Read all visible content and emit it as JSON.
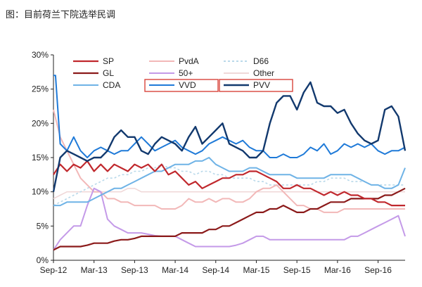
{
  "caption": "图：目前荷兰下院选举民调",
  "chart_data": {
    "type": "line",
    "title": "",
    "xlabel": "",
    "ylabel": "",
    "x_ticks": [
      "Sep-12",
      "Mar-13",
      "Sep-13",
      "Mar-14",
      "Sep-14",
      "Mar-15",
      "Sep-15",
      "Mar-16",
      "Sep-16"
    ],
    "y_ticks": [
      "0%",
      "5%",
      "10%",
      "15%",
      "20%",
      "25%",
      "30%"
    ],
    "x_range_months": [
      0,
      52
    ],
    "ylim": [
      0,
      30
    ],
    "grid": false,
    "legend_placement": "top-left",
    "highlighted_series": [
      "VVD",
      "PVV"
    ],
    "series": [
      {
        "name": "SP",
        "color": "#c0282d",
        "width": 2.2,
        "dash": "",
        "x": [
          0,
          1,
          2,
          3,
          4,
          5,
          6,
          7,
          8,
          9,
          10,
          11,
          12,
          13,
          14,
          15,
          16,
          17,
          18,
          19,
          20,
          21,
          22,
          23,
          24,
          25,
          26,
          27,
          28,
          29,
          30,
          31,
          32,
          33,
          34,
          35,
          36,
          37,
          38,
          39,
          40,
          41,
          42,
          43,
          44,
          45,
          46,
          47,
          48,
          49,
          50,
          51,
          52
        ],
        "y": [
          12.5,
          14,
          13,
          14,
          13.5,
          14.5,
          13,
          14,
          13,
          14,
          13.5,
          13,
          14,
          13.5,
          14,
          13,
          14,
          12.5,
          13,
          12,
          11,
          11.5,
          10.5,
          11,
          11.5,
          12,
          12,
          12.5,
          12.5,
          13,
          13,
          12.5,
          12,
          11.5,
          10.5,
          10.5,
          11,
          10.5,
          10.5,
          10,
          9.5,
          10,
          9.5,
          10,
          9.5,
          9.5,
          9,
          9,
          8.5,
          8.5,
          8,
          8,
          8
        ]
      },
      {
        "name": "PvdA",
        "color": "#f2b8b8",
        "width": 2,
        "dash": "",
        "x": [
          0,
          1,
          2,
          3,
          4,
          5,
          6,
          7,
          8,
          9,
          10,
          11,
          12,
          13,
          14,
          15,
          16,
          17,
          18,
          19,
          20,
          21,
          22,
          23,
          24,
          25,
          26,
          27,
          28,
          29,
          30,
          31,
          32,
          33,
          34,
          35,
          36,
          37,
          38,
          39,
          40,
          41,
          42,
          43,
          44,
          45,
          46,
          47,
          48,
          49,
          50,
          51,
          52
        ],
        "y": [
          22,
          18,
          16,
          14,
          12,
          11,
          10,
          10,
          9,
          9,
          8.5,
          8.5,
          8,
          8,
          8,
          8,
          7.5,
          7.5,
          7.5,
          8,
          9,
          8.5,
          8.5,
          9,
          8.5,
          9,
          9,
          8.5,
          8.5,
          9,
          10,
          10.5,
          10.5,
          11,
          10,
          9,
          8,
          8,
          7.5,
          7.5,
          7,
          7,
          7,
          7.5,
          7.5,
          7.5,
          7.5,
          7.5,
          7.5,
          7.5,
          7.5,
          7.5,
          7.5
        ]
      },
      {
        "name": "D66",
        "color": "#b9d9ea",
        "width": 1.6,
        "dash": "3,3",
        "x": [
          0,
          1,
          2,
          3,
          4,
          5,
          6,
          7,
          8,
          9,
          10,
          11,
          12,
          13,
          14,
          15,
          16,
          17,
          18,
          19,
          20,
          21,
          22,
          23,
          24,
          25,
          26,
          27,
          28,
          29,
          30,
          31,
          32,
          33,
          34,
          35,
          36,
          37,
          38,
          39,
          40,
          41,
          42,
          43,
          44,
          45,
          46,
          47,
          48,
          49,
          50,
          51,
          52
        ],
        "y": [
          8,
          8.5,
          9,
          9.5,
          10,
          10.5,
          11,
          11.5,
          12,
          12,
          12.5,
          12.5,
          13,
          13,
          13.5,
          13.5,
          14,
          13.5,
          13.5,
          13,
          13,
          12.5,
          13,
          13,
          12.5,
          12.5,
          12,
          12,
          12,
          12,
          11.5,
          11.5,
          11,
          11,
          11,
          11,
          11,
          11,
          11,
          11.5,
          11.5,
          12,
          12,
          12,
          11.5,
          11.5,
          11.5,
          11,
          11,
          11,
          11,
          11,
          11
        ]
      },
      {
        "name": "GL",
        "color": "#8b1a1a",
        "width": 2.2,
        "dash": "",
        "x": [
          0,
          1,
          2,
          3,
          4,
          5,
          6,
          7,
          8,
          9,
          10,
          11,
          12,
          13,
          14,
          15,
          16,
          17,
          18,
          19,
          20,
          21,
          22,
          23,
          24,
          25,
          26,
          27,
          28,
          29,
          30,
          31,
          32,
          33,
          34,
          35,
          36,
          37,
          38,
          39,
          40,
          41,
          42,
          43,
          44,
          45,
          46,
          47,
          48,
          49,
          50,
          51,
          52
        ],
        "y": [
          1.5,
          2,
          2,
          2,
          2,
          2.2,
          2.5,
          2.5,
          2.5,
          2.8,
          3,
          3,
          3.2,
          3.5,
          3.5,
          3.5,
          3.5,
          3.5,
          3.5,
          4,
          4,
          4,
          4,
          4.5,
          4.5,
          5,
          5,
          5.5,
          6,
          6.5,
          7,
          7,
          7.5,
          7.5,
          8,
          7.5,
          7,
          7,
          7.5,
          7.5,
          8,
          8.5,
          8.5,
          8.5,
          9,
          9,
          9,
          9,
          9,
          9.5,
          9.5,
          10,
          10.5
        ]
      },
      {
        "name": "50+",
        "color": "#c49ae8",
        "width": 2,
        "dash": "",
        "x": [
          0,
          1,
          2,
          3,
          4,
          5,
          6,
          7,
          8,
          9,
          10,
          11,
          12,
          13,
          14,
          15,
          16,
          17,
          18,
          19,
          20,
          21,
          22,
          23,
          24,
          25,
          26,
          27,
          28,
          29,
          30,
          31,
          32,
          33,
          34,
          35,
          36,
          37,
          38,
          39,
          40,
          41,
          42,
          43,
          44,
          45,
          46,
          47,
          48,
          49,
          50,
          51,
          52
        ],
        "y": [
          1.5,
          3,
          4,
          5,
          5,
          8,
          10.5,
          10,
          6,
          5,
          4.5,
          4,
          4,
          4,
          3.8,
          3.6,
          3.5,
          3.5,
          3.5,
          3,
          2.5,
          2,
          2,
          2,
          2,
          2,
          2,
          2.2,
          2.5,
          3,
          3.5,
          3.5,
          3,
          3,
          3,
          3,
          3,
          3,
          3,
          3,
          3,
          3,
          3,
          3,
          3.5,
          3.5,
          4,
          4.5,
          5,
          5.5,
          6,
          6.5,
          3.5
        ]
      },
      {
        "name": "Other",
        "color": "#f0d8d8",
        "width": 1.6,
        "dash": "",
        "x": [
          0,
          1,
          2,
          3,
          4,
          5,
          6,
          7,
          8,
          9,
          10,
          11,
          12,
          13,
          14,
          15,
          16,
          17,
          18,
          19,
          20,
          21,
          22,
          23,
          24,
          25,
          26,
          27,
          28,
          29,
          30,
          31,
          32,
          33,
          34,
          35,
          36,
          37,
          38,
          39,
          40,
          41,
          42,
          43,
          44,
          45,
          46,
          47,
          48,
          49,
          50,
          51,
          52
        ],
        "y": [
          9,
          9.5,
          10,
          10,
          10,
          10,
          10,
          10,
          10,
          10,
          10,
          10.5,
          10.5,
          10,
          10,
          10,
          10,
          10,
          10,
          10,
          10,
          10,
          10,
          10,
          10,
          10,
          10,
          10,
          10,
          10,
          10,
          10,
          10,
          10,
          10,
          10,
          10,
          10,
          10,
          10,
          10,
          10,
          10,
          10,
          10,
          10,
          10,
          10,
          10,
          10,
          10,
          10,
          10
        ]
      },
      {
        "name": "CDA",
        "color": "#6fb3e6",
        "width": 2,
        "dash": "",
        "x": [
          0,
          1,
          2,
          3,
          4,
          5,
          6,
          7,
          8,
          9,
          10,
          11,
          12,
          13,
          14,
          15,
          16,
          17,
          18,
          19,
          20,
          21,
          22,
          23,
          24,
          25,
          26,
          27,
          28,
          29,
          30,
          31,
          32,
          33,
          34,
          35,
          36,
          37,
          38,
          39,
          40,
          41,
          42,
          43,
          44,
          45,
          46,
          47,
          48,
          49,
          50,
          51,
          52
        ],
        "y": [
          8,
          8,
          8.5,
          8.5,
          8.5,
          8.5,
          9,
          9.5,
          10,
          10.5,
          10.5,
          11,
          11.5,
          12,
          12.5,
          13,
          13,
          13.5,
          14,
          14,
          14,
          14.5,
          14.5,
          15,
          14,
          13.5,
          13,
          13,
          13,
          13.5,
          13.5,
          13,
          12.5,
          12.5,
          12.5,
          12.5,
          12,
          12,
          12,
          12,
          12,
          12.5,
          12.5,
          12.5,
          12.5,
          12,
          11.5,
          11,
          11,
          10.5,
          10.5,
          11,
          13.5
        ]
      },
      {
        "name": "VVD",
        "color": "#1f7ad8",
        "width": 2,
        "dash": "",
        "x": [
          0,
          0.3,
          1,
          2,
          3,
          4,
          5,
          6,
          7,
          8,
          9,
          10,
          11,
          12,
          13,
          14,
          15,
          16,
          17,
          18,
          19,
          20,
          21,
          22,
          23,
          24,
          25,
          26,
          27,
          28,
          29,
          30,
          31,
          32,
          33,
          34,
          35,
          36,
          37,
          38,
          39,
          40,
          41,
          42,
          43,
          44,
          45,
          46,
          47,
          48,
          49,
          50,
          51,
          52
        ],
        "y": [
          27,
          27,
          17,
          16,
          18,
          16,
          15,
          16,
          16.5,
          16,
          15.5,
          16,
          16,
          17,
          18,
          17,
          16,
          16.5,
          17,
          17.5,
          16.5,
          16,
          15.5,
          16,
          17,
          17.5,
          18,
          17.5,
          17,
          17.5,
          16.5,
          16,
          16,
          15,
          15,
          15.5,
          15,
          15,
          15.5,
          16.5,
          16,
          17,
          15.5,
          16,
          17,
          16.5,
          17,
          16.5,
          17,
          16,
          15.5,
          16,
          16,
          16.5
        ]
      },
      {
        "name": "PVV",
        "color": "#12396e",
        "width": 2.4,
        "dash": "",
        "x": [
          0,
          1,
          2,
          3,
          4,
          5,
          6,
          7,
          8,
          9,
          10,
          11,
          12,
          13,
          14,
          15,
          16,
          17,
          18,
          19,
          20,
          21,
          22,
          23,
          24,
          25,
          26,
          27,
          28,
          29,
          30,
          31,
          32,
          33,
          34,
          35,
          36,
          37,
          38,
          39,
          40,
          41,
          42,
          43,
          44,
          45,
          46,
          47,
          48,
          49,
          50,
          51,
          52
        ],
        "y": [
          10,
          15,
          16,
          15.5,
          15,
          14.5,
          15,
          15,
          16,
          18,
          19,
          18,
          18,
          16,
          15.5,
          17,
          18,
          17.5,
          17,
          16,
          18,
          19.5,
          17,
          18,
          19,
          20,
          17,
          16.5,
          16,
          15,
          15,
          16,
          20,
          23,
          24,
          24,
          22,
          24.5,
          26,
          23,
          22.5,
          22.5,
          21.5,
          22,
          20,
          18.5,
          17.5,
          17,
          17.5,
          22,
          22.5,
          21,
          16
        ]
      }
    ],
    "legend": [
      [
        "SP",
        "PvdA",
        "D66"
      ],
      [
        "GL",
        "50+",
        "Other"
      ],
      [
        "CDA",
        "VVD",
        "PVV"
      ]
    ]
  }
}
